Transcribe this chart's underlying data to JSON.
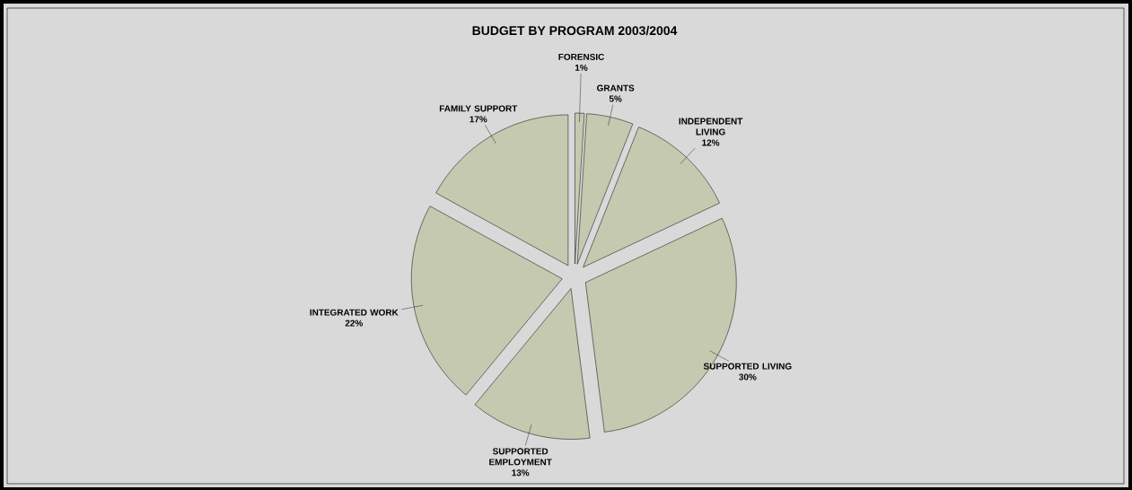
{
  "chart_data": {
    "type": "pie",
    "title": "BUDGET BY PROGRAM 2003/2004",
    "categories": [
      "FORENSIC",
      "GRANTS",
      "INDEPENDENT LIVING",
      "SUPPORTED LIVING",
      "SUPPORTED EMPLOYMENT",
      "INTEGRATED WORK",
      "FAMILY SUPPORT"
    ],
    "values": [
      1,
      5,
      12,
      30,
      13,
      22,
      17
    ],
    "value_labels": [
      "1%",
      "5%",
      "12%",
      "30%",
      "13%",
      "22%",
      "17%"
    ],
    "colors": [
      "#c4c9b0",
      "#c4c9b0",
      "#c4c9b0",
      "#c4c9b0",
      "#c4c9b0",
      "#c4c9b0",
      "#c4c9b0"
    ]
  }
}
